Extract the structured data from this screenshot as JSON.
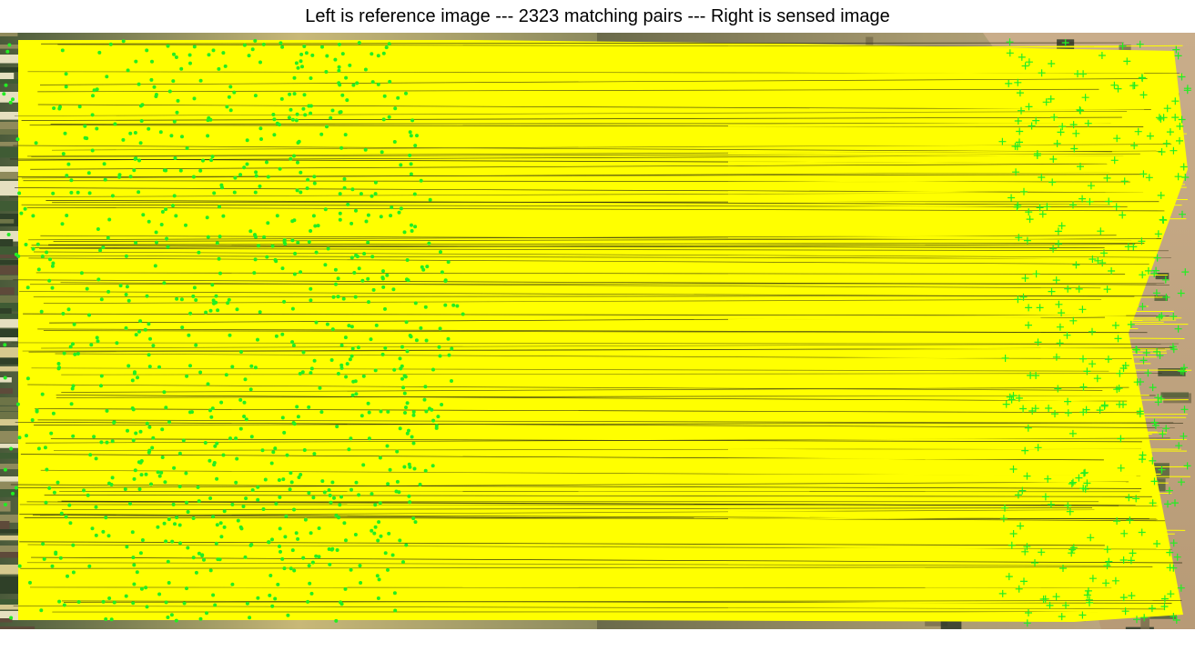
{
  "figure": {
    "title": "Left is reference image --- 2323 matching pairs --- Right is sensed image"
  },
  "colors": {
    "match_line": "#ffff00",
    "keypoint": "#22ee22",
    "background": "#ffffff"
  }
}
